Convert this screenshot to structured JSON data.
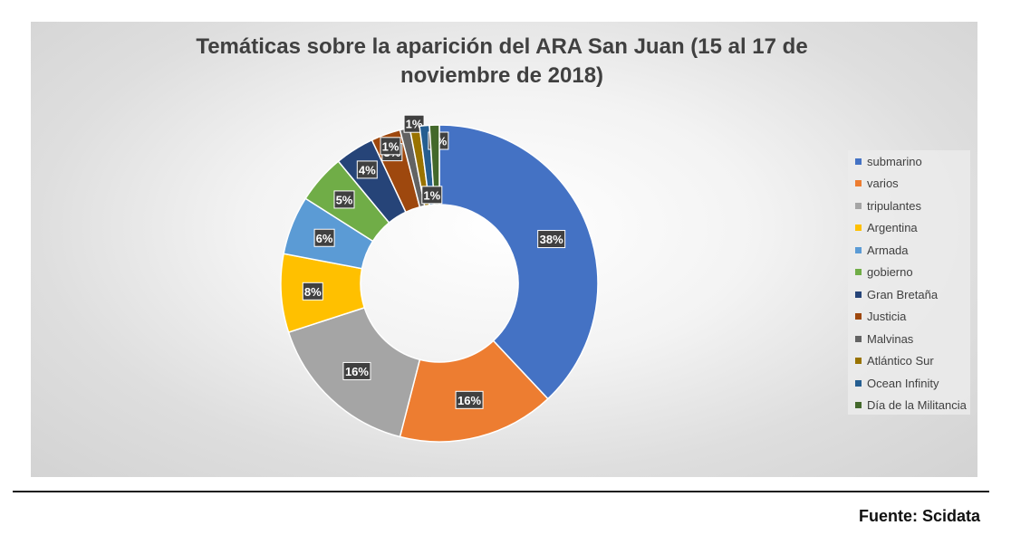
{
  "chart_data": {
    "type": "pie",
    "title": "Temáticas sobre la aparición del ARA San Juan (15 al 17 de noviembre de 2018)",
    "categories": [
      "submarino",
      "varios",
      "tripulantes",
      "Argentina",
      "Armada",
      "gobierno",
      "Gran Bretaña",
      "Justicia",
      "Malvinas",
      "Atlántico Sur",
      "Ocean Infinity",
      "Día de la Militancia"
    ],
    "values": [
      38,
      16,
      16,
      8,
      6,
      5,
      4,
      3,
      1,
      1,
      1,
      1
    ],
    "data_labels": [
      "38%",
      "16%",
      "16%",
      "8%",
      "6%",
      "5%",
      "4%",
      "3%",
      "1%",
      "1%",
      "1%",
      "1%"
    ],
    "colors": [
      "#4472C4",
      "#ED7D31",
      "#A5A5A5",
      "#FFC000",
      "#5B9BD5",
      "#70AD47",
      "#264478",
      "#9E480E",
      "#636363",
      "#997300",
      "#255E91",
      "#43682B"
    ],
    "donut": true,
    "legend_position": "right"
  },
  "source": "Fuente: Scidata"
}
